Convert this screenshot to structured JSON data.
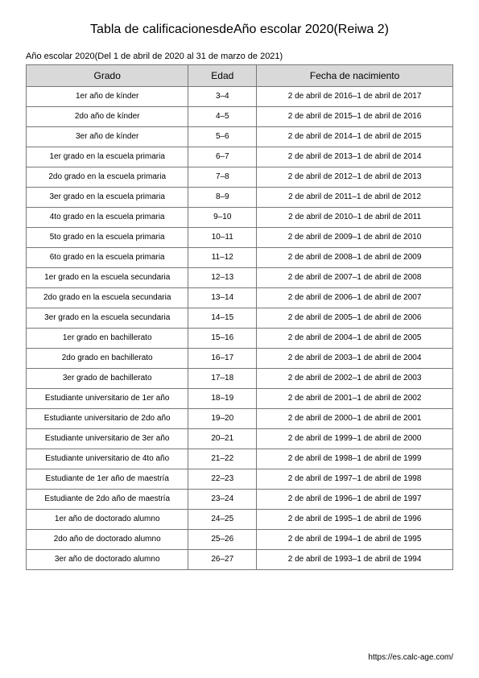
{
  "title": "Tabla de calificacionesdeAño escolar 2020(Reiwa 2)",
  "title_fontsize": 16,
  "subtitle": "Año escolar 2020(Del 1 de abril de 2020 al 31 de marzo de 2021)",
  "subtitle_fontsize": 11,
  "table": {
    "header_bg": "#d9d9d9",
    "header_fontsize": 12,
    "body_fontsize": 10,
    "col_widths_pct": [
      38,
      16,
      46
    ],
    "columns": [
      "Grado",
      "Edad",
      "Fecha de nacimiento"
    ],
    "rows": [
      [
        "1er año de kínder",
        "3–4",
        "2 de abril de 2016–1 de abril de 2017"
      ],
      [
        "2do año de kínder",
        "4–5",
        "2 de abril de 2015–1 de abril de 2016"
      ],
      [
        "3er año de kínder",
        "5–6",
        "2 de abril de 2014–1 de abril de 2015"
      ],
      [
        "1er grado en la escuela primaria",
        "6–7",
        "2 de abril de 2013–1 de abril de 2014"
      ],
      [
        "2do grado en la escuela primaria",
        "7–8",
        "2 de abril de 2012–1 de abril de 2013"
      ],
      [
        "3er grado en la escuela primaria",
        "8–9",
        "2 de abril de 2011–1 de abril de 2012"
      ],
      [
        "4to grado en la escuela primaria",
        "9–10",
        "2 de abril de 2010–1 de abril de 2011"
      ],
      [
        "5to grado en la escuela primaria",
        "10–11",
        "2 de abril de 2009–1 de abril de 2010"
      ],
      [
        "6to grado en la escuela primaria",
        "11–12",
        "2 de abril de 2008–1 de abril de 2009"
      ],
      [
        "1er grado en la escuela secundaria",
        "12–13",
        "2 de abril de 2007–1 de abril de 2008"
      ],
      [
        "2do grado en la escuela secundaria",
        "13–14",
        "2 de abril de 2006–1 de abril de 2007"
      ],
      [
        "3er grado en la escuela secundaria",
        "14–15",
        "2 de abril de 2005–1 de abril de 2006"
      ],
      [
        "1er grado en bachillerato",
        "15–16",
        "2 de abril de 2004–1 de abril de 2005"
      ],
      [
        "2do grado en bachillerato",
        "16–17",
        "2 de abril de 2003–1 de abril de 2004"
      ],
      [
        "3er grado de bachillerato",
        "17–18",
        "2 de abril de 2002–1 de abril de 2003"
      ],
      [
        "Estudiante universitario de 1er año",
        "18–19",
        "2 de abril de 2001–1 de abril de 2002"
      ],
      [
        "Estudiante universitario de 2do año",
        "19–20",
        "2 de abril de 2000–1 de abril de 2001"
      ],
      [
        "Estudiante universitario de 3er año",
        "20–21",
        "2 de abril de 1999–1 de abril de 2000"
      ],
      [
        "Estudiante universitario de 4to año",
        "21–22",
        "2 de abril de 1998–1 de abril de 1999"
      ],
      [
        "Estudiante de 1er año de maestría",
        "22–23",
        "2 de abril de 1997–1 de abril de 1998"
      ],
      [
        "Estudiante de 2do año de maestría",
        "23–24",
        "2 de abril de 1996–1 de abril de 1997"
      ],
      [
        "1er año de doctorado alumno",
        "24–25",
        "2 de abril de 1995–1 de abril de 1996"
      ],
      [
        "2do año de doctorado alumno",
        "25–26",
        "2 de abril de 1994–1 de abril de 1995"
      ],
      [
        "3er año de doctorado alumno",
        "26–27",
        "2 de abril de 1993–1 de abril de 1994"
      ]
    ]
  },
  "footer": {
    "text": "https://es.calc-age.com/",
    "fontsize": 10
  }
}
